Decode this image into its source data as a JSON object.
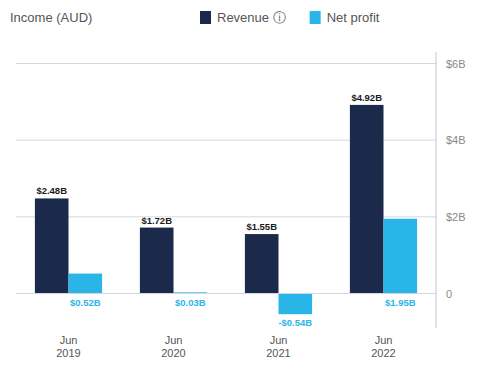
{
  "chart_data": {
    "type": "bar",
    "title": "Income (AUD)",
    "categories": [
      "Jun\n2019",
      "Jun\n2020",
      "Jun\n2021",
      "Jun\n2022"
    ],
    "series": [
      {
        "name": "Revenue ⓘ",
        "color": "#1b2a4a",
        "values": [
          2.48,
          1.72,
          1.55,
          4.92
        ],
        "value_labels": [
          "$2.48B",
          "$1.72B",
          "$1.55B",
          "$4.92B"
        ]
      },
      {
        "name": "Net profit",
        "color": "#29b5e8",
        "values": [
          0.52,
          0.03,
          -0.54,
          1.95
        ],
        "value_labels": [
          "$0.52B",
          "$0.03B",
          "-$0.54B",
          "$1.95B"
        ]
      }
    ],
    "ylim": [
      -0.9,
      6.3
    ],
    "yticks": [
      0,
      {
        "value": 2,
        "label": "$2B"
      },
      {
        "value": 4,
        "label": "$4B"
      },
      {
        "value": 6,
        "label": "$6B"
      }
    ],
    "grid": true,
    "data_labels": true,
    "legend": "top"
  }
}
